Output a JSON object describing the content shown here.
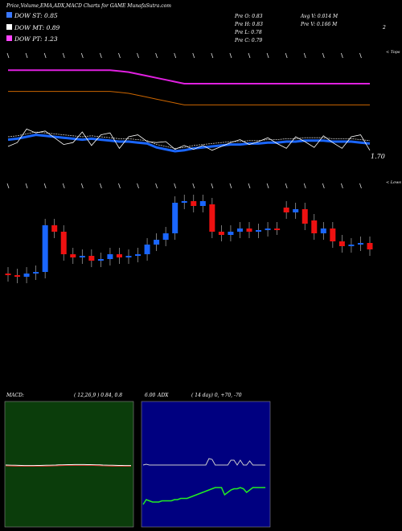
{
  "header": {
    "title": "Price,Volume,EMA,ADX,MACD Charts for GAME MunafaSutra.com",
    "stats": {
      "open": "Pre  O: 0.83",
      "high": "Pre  H: 0.83",
      "low": "Pre  L: 0.78",
      "close": "Pre  C: 0.79",
      "avg_vol": "Avg V: 0.014  M",
      "pre_vol": "Pre  V: 0.166  M",
      "corner": "2"
    }
  },
  "legend": [
    {
      "label": "DOW ST: 0.85",
      "color": "#3a78ff"
    },
    {
      "label": "DOW MT: 0.89",
      "color": "#ffffff"
    },
    {
      "label": "DOW PT: 1.23",
      "color": "#ff44ff"
    }
  ],
  "price_panel": {
    "top_label": "< Tops",
    "price_tag": "1.70",
    "colors": {
      "dow_st": "#1a66ff",
      "dow_pt": "#e020e0",
      "ema_long": "#cc6600",
      "price_line": "#ffffff",
      "ema_mid": "#cccccc"
    }
  },
  "candle_panel": {
    "low_label": "< Lows",
    "colors": {
      "up": "#1a66ff",
      "down": "#ee1111"
    }
  },
  "macd_panel": {
    "label": "MACD:",
    "params": "( 12,26,9 ) 0.84,  0.8",
    "extra": "6.00",
    "bg": "#0b3d0b"
  },
  "adx_panel": {
    "label": "ADX",
    "params": "( 14  day) 0,  +70,  -70",
    "extra": "6.00",
    "bg": "#000080"
  },
  "chart_data": {
    "type": "candlestick",
    "title": "Price,Volume,EMA,ADX,MACD Charts for GAME MunafaSutra.com",
    "note": "Values read as pixel-relative estimates; price axis unlabeled except 1.70 tag",
    "candles": [
      {
        "o": 0.3,
        "c": 0.29,
        "up": false
      },
      {
        "o": 0.29,
        "c": 0.28,
        "up": false
      },
      {
        "o": 0.28,
        "c": 0.3,
        "up": true
      },
      {
        "o": 0.3,
        "c": 0.31,
        "up": true
      },
      {
        "o": 0.31,
        "c": 0.6,
        "up": true
      },
      {
        "o": 0.6,
        "c": 0.56,
        "up": false
      },
      {
        "o": 0.56,
        "c": 0.42,
        "up": false
      },
      {
        "o": 0.42,
        "c": 0.4,
        "up": false
      },
      {
        "o": 0.4,
        "c": 0.41,
        "up": true
      },
      {
        "o": 0.41,
        "c": 0.38,
        "up": false
      },
      {
        "o": 0.38,
        "c": 0.39,
        "up": true
      },
      {
        "o": 0.39,
        "c": 0.42,
        "up": true
      },
      {
        "o": 0.42,
        "c": 0.4,
        "up": false
      },
      {
        "o": 0.4,
        "c": 0.41,
        "up": true
      },
      {
        "o": 0.41,
        "c": 0.42,
        "up": true
      },
      {
        "o": 0.42,
        "c": 0.48,
        "up": true
      },
      {
        "o": 0.48,
        "c": 0.51,
        "up": true
      },
      {
        "o": 0.51,
        "c": 0.55,
        "up": true
      },
      {
        "o": 0.55,
        "c": 0.74,
        "up": true
      },
      {
        "o": 0.74,
        "c": 0.75,
        "up": true
      },
      {
        "o": 0.75,
        "c": 0.72,
        "up": false
      },
      {
        "o": 0.72,
        "c": 0.75,
        "up": true
      },
      {
        "o": 0.73,
        "c": 0.56,
        "up": false
      },
      {
        "o": 0.56,
        "c": 0.54,
        "up": false
      },
      {
        "o": 0.54,
        "c": 0.56,
        "up": true
      },
      {
        "o": 0.56,
        "c": 0.58,
        "up": true
      },
      {
        "o": 0.58,
        "c": 0.56,
        "up": false
      },
      {
        "o": 0.56,
        "c": 0.57,
        "up": true
      },
      {
        "o": 0.57,
        "c": 0.58,
        "up": true
      },
      {
        "o": 0.58,
        "c": 0.58,
        "up": false
      },
      {
        "o": 0.71,
        "c": 0.68,
        "up": false
      },
      {
        "o": 0.68,
        "c": 0.7,
        "up": true
      },
      {
        "o": 0.7,
        "c": 0.61,
        "up": false
      },
      {
        "o": 0.63,
        "c": 0.55,
        "up": false
      },
      {
        "o": 0.55,
        "c": 0.58,
        "up": true
      },
      {
        "o": 0.58,
        "c": 0.5,
        "up": false
      },
      {
        "o": 0.5,
        "c": 0.47,
        "up": false
      },
      {
        "o": 0.47,
        "c": 0.48,
        "up": true
      },
      {
        "o": 0.48,
        "c": 0.49,
        "up": true
      },
      {
        "o": 0.49,
        "c": 0.45,
        "up": false
      }
    ],
    "series": [
      {
        "name": "DOW ST",
        "values": [
          0.52,
          0.53,
          0.55,
          0.57,
          0.56,
          0.55,
          0.54,
          0.53,
          0.52,
          0.53,
          0.52,
          0.51,
          0.5,
          0.5,
          0.49,
          0.48,
          0.44,
          0.42,
          0.4,
          0.41,
          0.43,
          0.44,
          0.45,
          0.46,
          0.47,
          0.47,
          0.48,
          0.48,
          0.49,
          0.49,
          0.5,
          0.5,
          0.51,
          0.51,
          0.51,
          0.5,
          0.5,
          0.5,
          0.49,
          0.48
        ]
      },
      {
        "name": "DOW PT",
        "values": [
          1.24,
          1.24,
          1.24,
          1.24,
          1.24,
          1.24,
          1.24,
          1.24,
          1.24,
          1.24,
          1.24,
          1.24,
          1.23,
          1.22,
          1.2,
          1.18,
          1.16,
          1.14,
          1.12,
          1.1,
          1.1,
          1.1,
          1.1,
          1.1,
          1.1,
          1.1,
          1.1,
          1.1,
          1.1,
          1.1,
          1.1,
          1.1,
          1.1,
          1.1,
          1.1,
          1.1,
          1.1,
          1.1,
          1.1,
          1.1
        ]
      }
    ]
  }
}
